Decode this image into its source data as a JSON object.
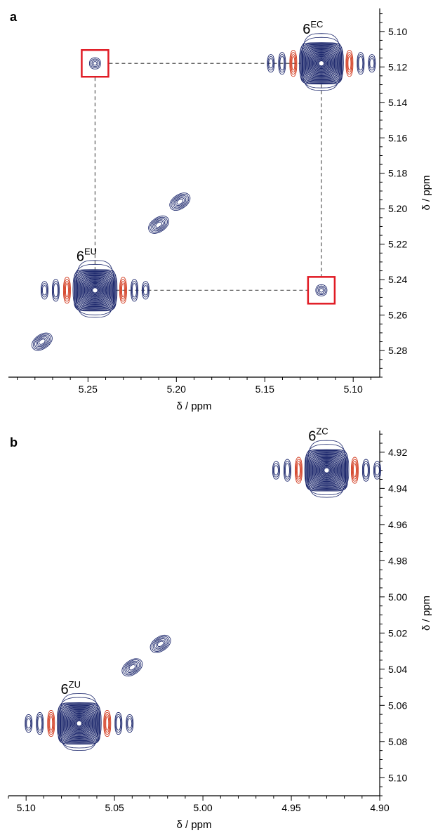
{
  "colors": {
    "positive": "#1f2a6e",
    "negative": "#d23a1e",
    "highlight": "#e01b24",
    "guide": "#555555"
  },
  "chart_data": [
    {
      "panel": "a",
      "type": "contour",
      "xlabel": "δ / ppm",
      "ylabel": "δ / ppm",
      "xlim": [
        5.295,
        5.085
      ],
      "ylim": [
        5.087,
        5.295
      ],
      "xticks": [
        "5.25",
        "5.20",
        "5.15",
        "5.10"
      ],
      "xtick_values": [
        5.25,
        5.2,
        5.15,
        5.1
      ],
      "yticks": [
        "5.10",
        "5.12",
        "5.14",
        "5.16",
        "5.18",
        "5.20",
        "5.22",
        "5.24",
        "5.26",
        "5.28"
      ],
      "ytick_values": [
        5.1,
        5.12,
        5.14,
        5.16,
        5.18,
        5.2,
        5.22,
        5.24,
        5.26,
        5.28
      ],
      "peaks": [
        {
          "label": "6",
          "sup": "EC",
          "x": 5.118,
          "y": 5.118
        },
        {
          "label": "6",
          "sup": "EU",
          "x": 5.246,
          "y": 5.246
        }
      ],
      "cross_peaks": [
        {
          "x": 5.246,
          "y": 5.118
        },
        {
          "x": 5.118,
          "y": 5.246
        }
      ],
      "minor_peaks": [
        {
          "x": 5.198,
          "y": 5.196
        },
        {
          "x": 5.21,
          "y": 5.209
        },
        {
          "x": 5.276,
          "y": 5.275
        }
      ]
    },
    {
      "panel": "b",
      "type": "contour",
      "xlabel": "δ / ppm",
      "ylabel": "δ / ppm",
      "xlim": [
        5.11,
        4.9
      ],
      "ylim": [
        4.908,
        5.11
      ],
      "xticks": [
        "5.10",
        "5.05",
        "5.00",
        "4.95",
        "4.90"
      ],
      "xtick_values": [
        5.1,
        5.05,
        5.0,
        4.95,
        4.9
      ],
      "yticks": [
        "4.92",
        "4.94",
        "4.96",
        "4.98",
        "5.00",
        "5.02",
        "5.04",
        "5.06",
        "5.08",
        "5.10"
      ],
      "ytick_values": [
        4.92,
        4.94,
        4.96,
        4.98,
        5.0,
        5.02,
        5.04,
        5.06,
        5.08,
        5.1
      ],
      "peaks": [
        {
          "label": "6",
          "sup": "ZC",
          "x": 4.93,
          "y": 4.93
        },
        {
          "label": "6",
          "sup": "ZU",
          "x": 5.07,
          "y": 5.07
        }
      ],
      "cross_peaks": [],
      "minor_peaks": [
        {
          "x": 5.024,
          "y": 5.026
        },
        {
          "x": 5.04,
          "y": 5.039
        }
      ]
    }
  ]
}
